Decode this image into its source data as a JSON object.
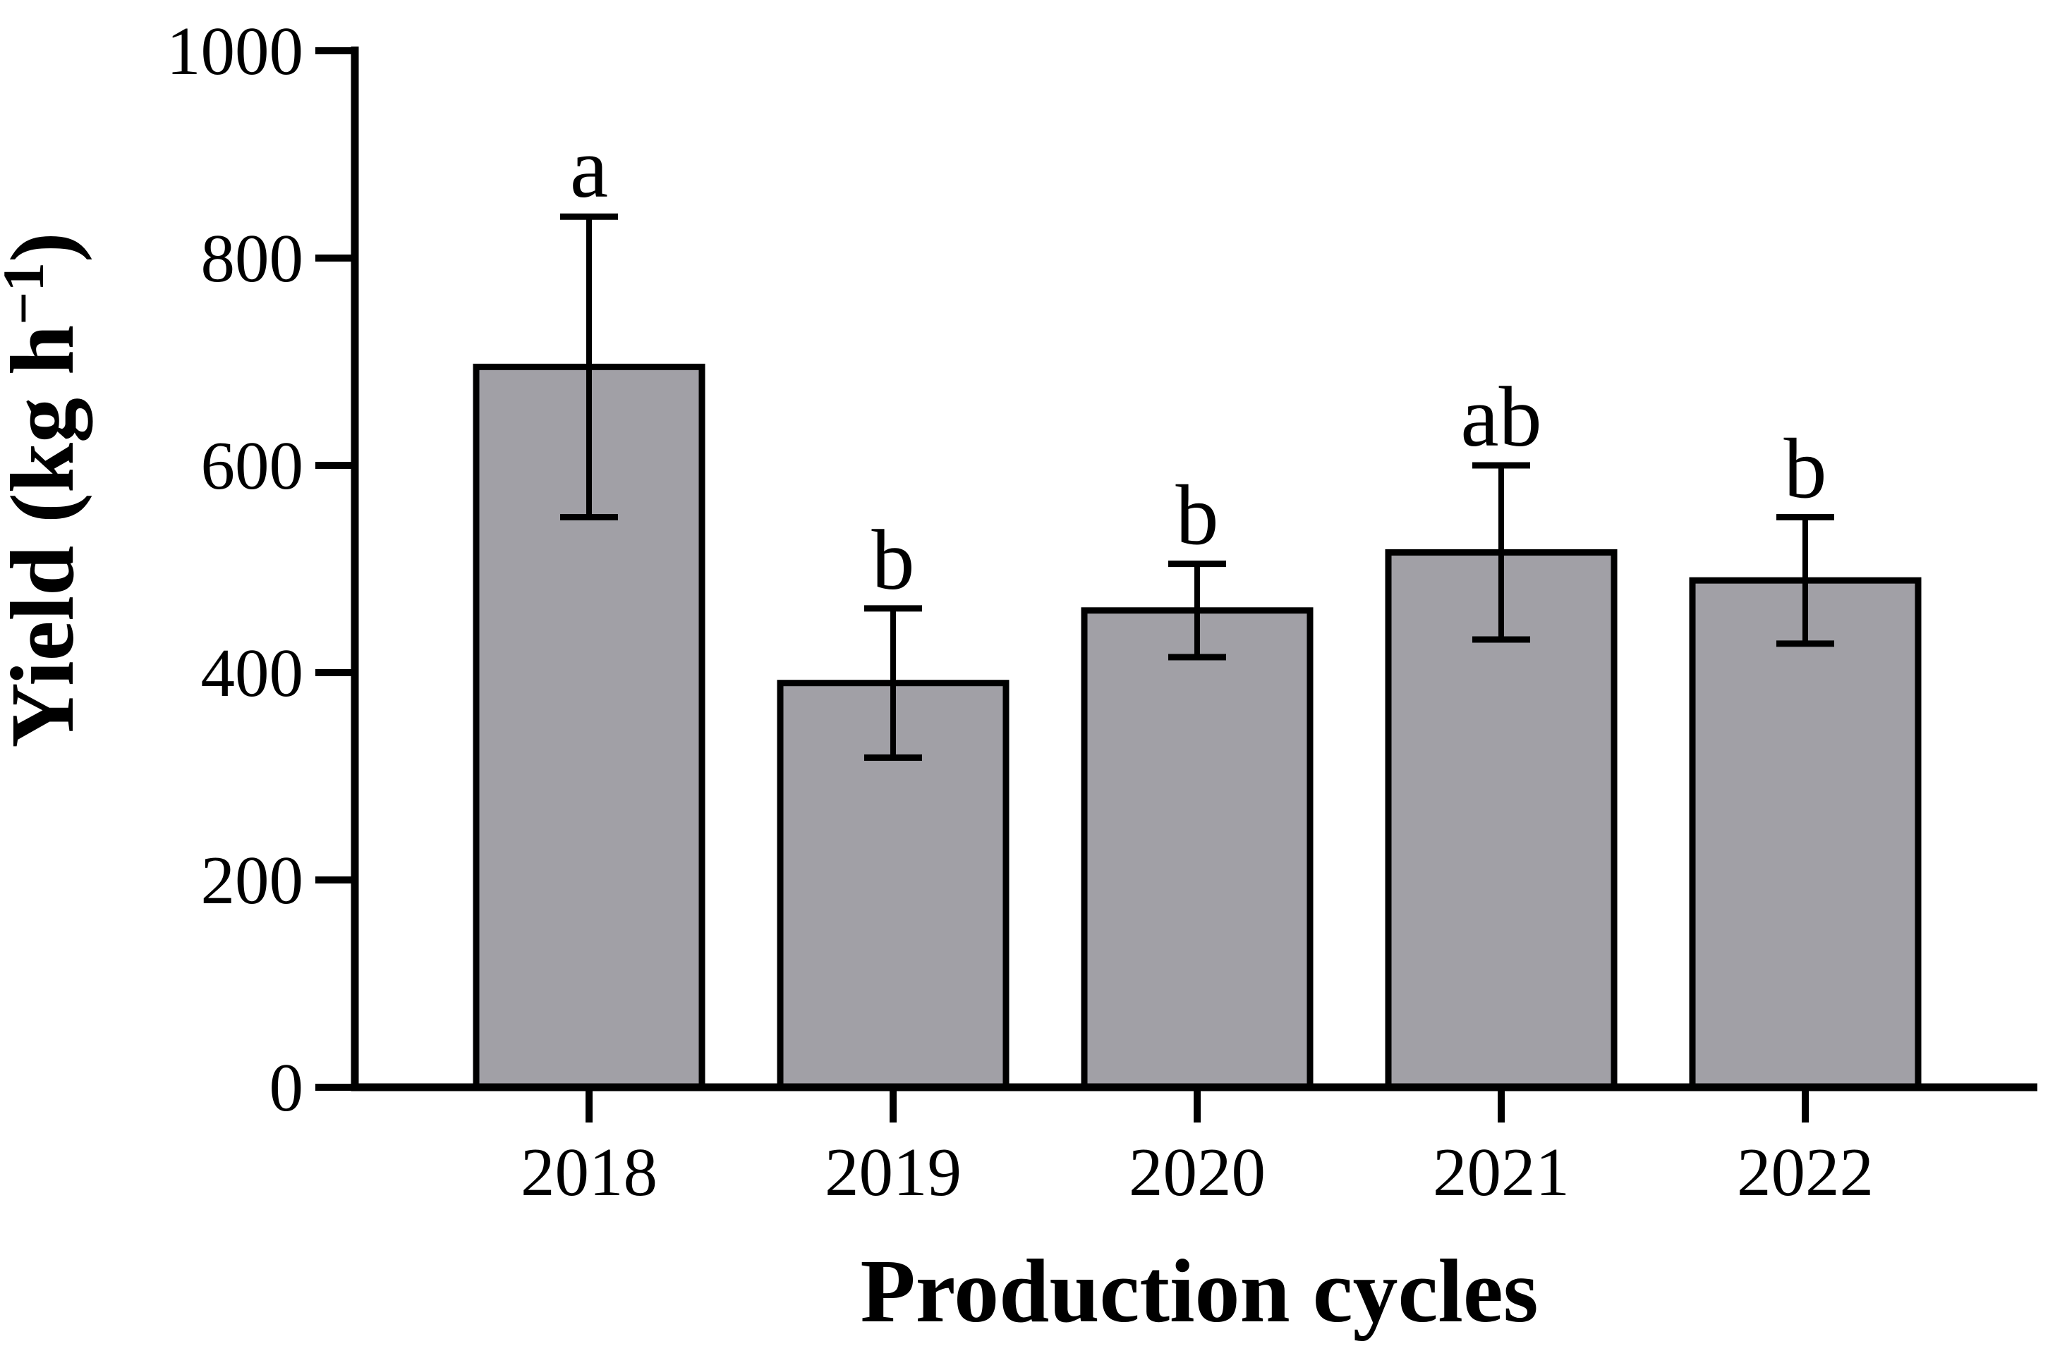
{
  "chart_data": {
    "type": "bar",
    "title": "",
    "xlabel": "Production cycles",
    "ylabel": "Yield (kg h⁻¹)",
    "ylabel_parts": {
      "base": "Yield (kg h",
      "sup": "−1",
      "close": ")"
    },
    "categories": [
      "2018",
      "2019",
      "2020",
      "2021",
      "2022"
    ],
    "values": [
      695,
      390,
      460,
      516,
      489
    ],
    "errors": [
      145,
      72,
      45,
      84,
      61
    ],
    "sig_letters": [
      "a",
      "b",
      "b",
      "ab",
      "b"
    ],
    "ylim": [
      0,
      1000
    ],
    "yticks": [
      0,
      200,
      400,
      600,
      800,
      1000
    ],
    "ytick_labels": [
      "0",
      "200",
      "400",
      "600",
      "800",
      "1000"
    ],
    "grid": false,
    "legend": null,
    "colors": {
      "bar_fill": "#a1a0a6",
      "bar_stroke": "#000000",
      "error_bar": "#000000",
      "axis": "#000000",
      "text": "#000000",
      "background": "#ffffff"
    }
  }
}
